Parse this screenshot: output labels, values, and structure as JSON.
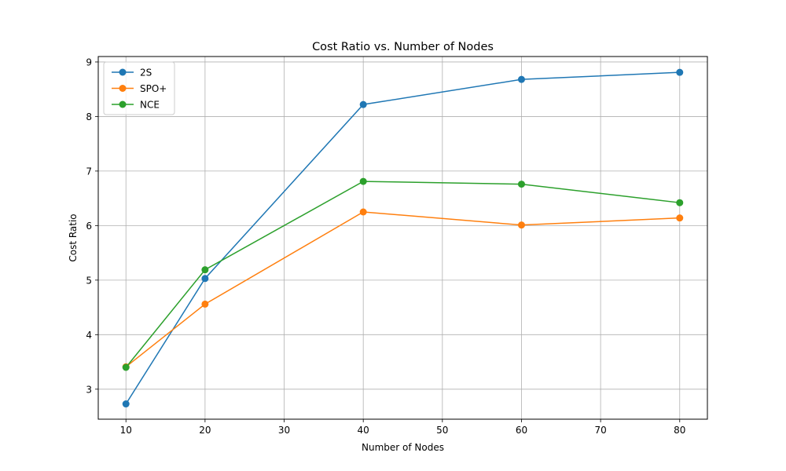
{
  "chart_data": {
    "type": "line",
    "title": "Cost Ratio vs. Number of Nodes",
    "xlabel": "Number of Nodes",
    "ylabel": "Cost Ratio",
    "x": [
      10,
      20,
      40,
      60,
      80
    ],
    "xlim": [
      6.5,
      83.5
    ],
    "ylim": [
      2.45,
      9.1
    ],
    "xticks": [
      10,
      20,
      30,
      40,
      50,
      60,
      70,
      80
    ],
    "yticks": [
      3,
      4,
      5,
      6,
      7,
      8,
      9
    ],
    "grid": true,
    "legend_position": "top-left",
    "series": [
      {
        "name": "2S",
        "color": "#1f77b4",
        "values": [
          2.73,
          5.03,
          8.22,
          8.68,
          8.81
        ]
      },
      {
        "name": "SPO+",
        "color": "#ff7f0e",
        "values": [
          3.41,
          4.56,
          6.25,
          6.01,
          6.14
        ]
      },
      {
        "name": "NCE",
        "color": "#2ca02c",
        "values": [
          3.4,
          5.19,
          6.81,
          6.76,
          6.42
        ]
      }
    ]
  }
}
